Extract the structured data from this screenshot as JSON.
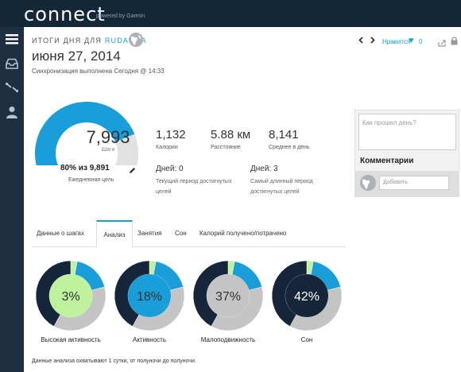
{
  "app": {
    "logo": "connect",
    "powered": "powered by Garmin"
  },
  "sidebar": {
    "items": [
      "menu-icon",
      "inbox-icon",
      "connections-icon",
      "profile-icon"
    ]
  },
  "header": {
    "title_prefix": "ИТОГИ ДНЯ ДЛЯ",
    "username": "RUDANNA",
    "date": "июня 27, 2014",
    "sync": "Синхронизация выполнена Сегодня @ 14:33",
    "like_label": "Нравится",
    "like_count": "0"
  },
  "steps": {
    "value": "7,993",
    "label": "Шаги",
    "goal_text": "80% из 9,891",
    "goal_label": "Ежедневная цель",
    "progress": 0.8
  },
  "stats": [
    {
      "value": "1,132",
      "label": "Калории"
    },
    {
      "value": "5.88 км",
      "label": "Расстояние"
    },
    {
      "value": "8,141",
      "label": "Среднее в день"
    }
  ],
  "streaks": [
    {
      "value": "Дней: 0",
      "label": "Текущий период достигнутых целей"
    },
    {
      "value": "Дней: 3",
      "label": "Самый длинный период достигнутых целей"
    }
  ],
  "comments": {
    "question_placeholder": "Как прошел день?",
    "title": "Комментарии",
    "add_placeholder": "Добавить"
  },
  "tabs": [
    {
      "label": "Данные о шагах",
      "active": false
    },
    {
      "label": "Анализ",
      "active": true
    },
    {
      "label": "Занятия",
      "active": false
    },
    {
      "label": "Сон",
      "active": false
    },
    {
      "label": "Калорий получено/потрачено",
      "active": false
    }
  ],
  "donuts": [
    {
      "label": "Высокая активность",
      "percent_text": "3%",
      "percent": 3,
      "center_color": "#bff29d"
    },
    {
      "label": "Активность",
      "percent_text": "18%",
      "percent": 18,
      "center_color": "#1a9ed9"
    },
    {
      "label": "Малоподвижность",
      "percent_text": "37%",
      "percent": 37,
      "center_color": "#c4c4c4"
    },
    {
      "label": "Сон",
      "percent_text": "42%",
      "percent": 42,
      "center_color": "#15263a"
    }
  ],
  "segment_colors": {
    "high": "#bff29d",
    "active": "#1a9ed9",
    "sedentary": "#c4c4c4",
    "sleep": "#15263a"
  },
  "footnote": "Данные анализа охватывают 1 сутки, от полуночи до полуночи.",
  "colors": {
    "accent": "#1a9ed9",
    "topbar": "#15283a",
    "sidebar": "#1d2f40"
  }
}
